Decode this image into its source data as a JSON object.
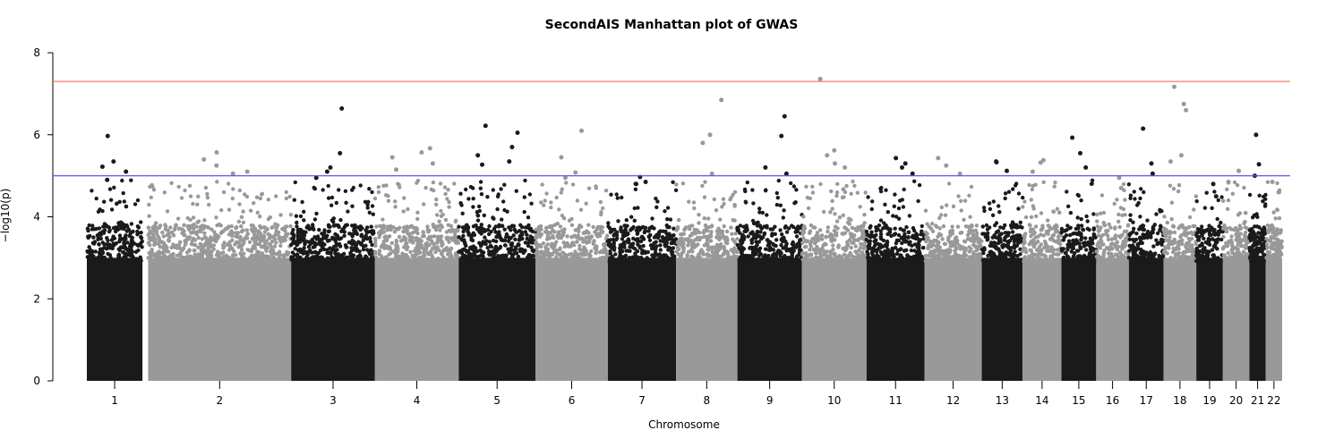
{
  "chart_data": {
    "type": "scatter",
    "subtype": "manhattan",
    "title": "SecondAIS Manhattan plot of GWAS",
    "xlabel": "Chromosome",
    "ylabel": "−log10(p)",
    "ylim": [
      0,
      8
    ],
    "y_ticks": [
      0,
      2,
      4,
      6,
      8
    ],
    "grid": false,
    "legend": "none",
    "colors": {
      "odd_chromosome": "#1a1a1a",
      "even_chromosome": "#999999",
      "genome_wide_line": "#f07b6f",
      "suggestive_line": "#5a5ae6",
      "axis": "#000000"
    },
    "thresholds": {
      "genome_wide_significance": 7.3,
      "suggestive": 5.0
    },
    "chromosomes": [
      {
        "label": "1",
        "x_start": 0.0,
        "x_end": 1.36,
        "max_y": 5.97,
        "peaks": [
          5.97,
          5.35,
          5.22,
          5.1,
          4.9
        ]
      },
      {
        "label": "2",
        "x_start": 1.5,
        "x_end": 5.0,
        "max_y": 5.57,
        "peaks": [
          5.57,
          5.4,
          5.25,
          5.1,
          5.05
        ]
      },
      {
        "label": "3",
        "x_start": 5.0,
        "x_end": 7.05,
        "max_y": 6.64,
        "peaks": [
          6.64,
          5.55,
          5.2,
          5.1,
          4.95
        ]
      },
      {
        "label": "4",
        "x_start": 7.05,
        "x_end": 9.1,
        "max_y": 5.67,
        "peaks": [
          5.67,
          5.57,
          5.45,
          5.3,
          5.15
        ]
      },
      {
        "label": "5",
        "x_start": 9.1,
        "x_end": 10.98,
        "max_y": 6.22,
        "peaks": [
          6.22,
          6.05,
          5.7,
          5.5,
          5.35,
          5.27
        ]
      },
      {
        "label": "6",
        "x_start": 10.98,
        "x_end": 12.75,
        "max_y": 6.1,
        "peaks": [
          6.1,
          5.45,
          5.08,
          4.95
        ]
      },
      {
        "label": "7",
        "x_start": 12.75,
        "x_end": 14.42,
        "max_y": 4.97,
        "peaks": [
          4.97,
          4.85,
          4.8
        ]
      },
      {
        "label": "8",
        "x_start": 14.42,
        "x_end": 15.92,
        "max_y": 6.85,
        "peaks": [
          6.85,
          6.0,
          5.8,
          5.05
        ]
      },
      {
        "label": "9",
        "x_start": 15.92,
        "x_end": 17.5,
        "max_y": 6.45,
        "peaks": [
          6.45,
          5.97,
          5.2,
          5.05
        ]
      },
      {
        "label": "10",
        "x_start": 17.5,
        "x_end": 19.08,
        "max_y": 7.36,
        "peaks": [
          7.36,
          5.62,
          5.5,
          5.3,
          5.2
        ]
      },
      {
        "label": "11",
        "x_start": 19.08,
        "x_end": 20.5,
        "max_y": 5.43,
        "peaks": [
          5.43,
          5.3,
          5.2,
          5.05
        ]
      },
      {
        "label": "12",
        "x_start": 20.5,
        "x_end": 21.9,
        "max_y": 5.43,
        "peaks": [
          5.43,
          5.25,
          5.05
        ]
      },
      {
        "label": "13",
        "x_start": 21.9,
        "x_end": 22.9,
        "max_y": 5.35,
        "peaks": [
          5.35,
          5.33,
          5.12
        ]
      },
      {
        "label": "14",
        "x_start": 22.9,
        "x_end": 23.85,
        "max_y": 5.38,
        "peaks": [
          5.38,
          5.32,
          5.1
        ]
      },
      {
        "label": "15",
        "x_start": 23.85,
        "x_end": 24.7,
        "max_y": 5.93,
        "peaks": [
          5.93,
          5.55,
          5.2
        ]
      },
      {
        "label": "16",
        "x_start": 24.7,
        "x_end": 25.5,
        "max_y": 4.95,
        "peaks": [
          4.95,
          4.7
        ]
      },
      {
        "label": "17",
        "x_start": 25.5,
        "x_end": 26.35,
        "max_y": 6.15,
        "peaks": [
          6.15,
          5.3,
          5.05
        ]
      },
      {
        "label": "18",
        "x_start": 26.35,
        "x_end": 27.15,
        "max_y": 7.17,
        "peaks": [
          7.17,
          6.75,
          6.6,
          5.5,
          5.35
        ]
      },
      {
        "label": "19",
        "x_start": 27.15,
        "x_end": 27.8,
        "max_y": 4.8,
        "peaks": [
          4.8,
          4.5
        ]
      },
      {
        "label": "20",
        "x_start": 27.8,
        "x_end": 28.45,
        "max_y": 5.12,
        "peaks": [
          5.12,
          4.85
        ]
      },
      {
        "label": "21",
        "x_start": 28.45,
        "x_end": 28.85,
        "max_y": 6.0,
        "peaks": [
          6.0,
          5.28,
          5.0
        ]
      },
      {
        "label": "22",
        "x_start": 28.85,
        "x_end": 29.25,
        "max_y": 4.85,
        "peaks": [
          4.85,
          4.6
        ]
      }
    ]
  }
}
